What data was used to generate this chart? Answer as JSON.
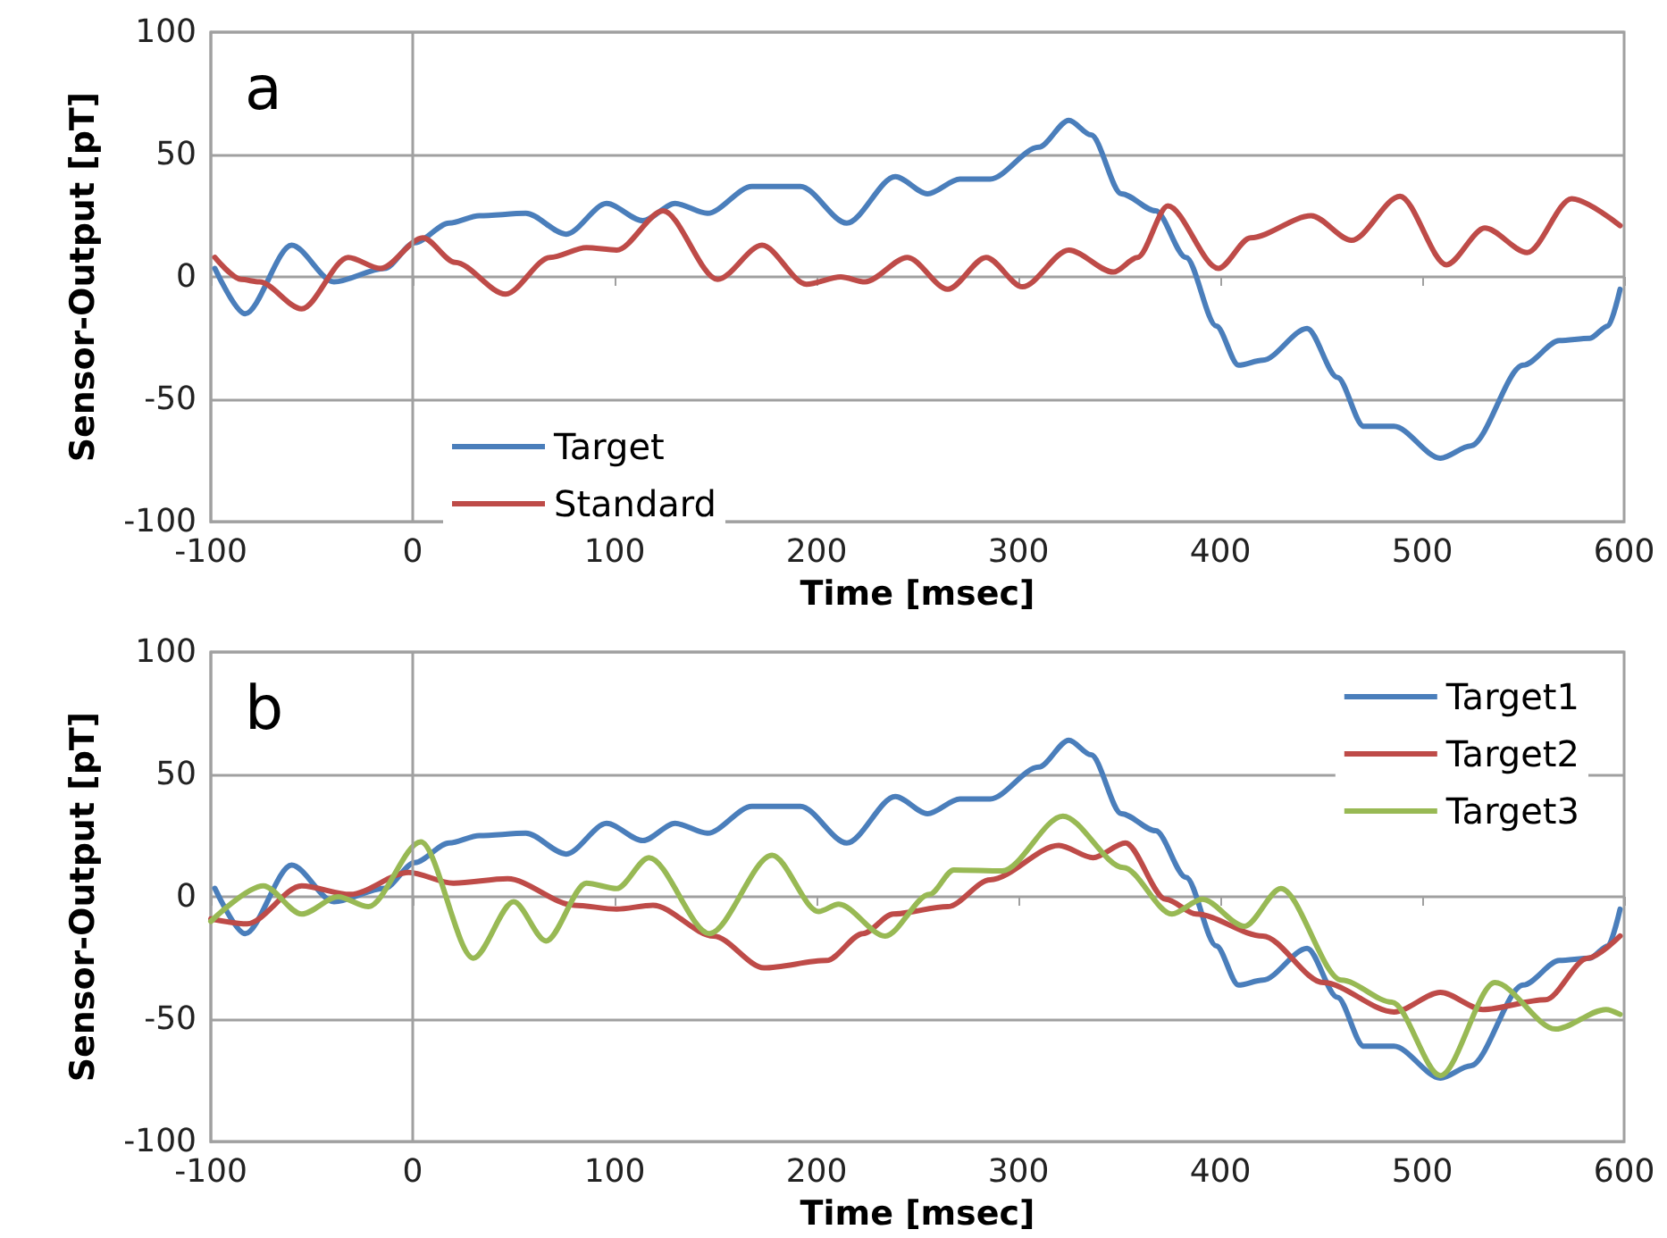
{
  "chart_data": [
    {
      "type": "line",
      "title": "a",
      "xlabel": "Time [msec]",
      "ylabel": "Sensor-Output [pT]",
      "xlim": [
        -100,
        600
      ],
      "xticks": [
        -100,
        0,
        100,
        200,
        300,
        400,
        500,
        600
      ],
      "ylim": [
        -100,
        100
      ],
      "yticks": [
        -100,
        -50,
        0,
        50,
        100
      ],
      "grid": "y",
      "legend": "bottom left",
      "marker": "none",
      "line_style": "solid",
      "ref_lines": [
        {
          "axis": "x",
          "value": 0
        }
      ],
      "series": [
        {
          "name": "Target",
          "color": "#4a7ebb",
          "x": [
            -98,
            -83,
            -60,
            -39,
            -14,
            1,
            18,
            33,
            56,
            76,
            96,
            114,
            130,
            146,
            168,
            192,
            215,
            239,
            255,
            271,
            286,
            310,
            325,
            336,
            351,
            368,
            383,
            398,
            409,
            421,
            443,
            458,
            471,
            486,
            509,
            524,
            550,
            568,
            583,
            592,
            598
          ],
          "values": [
            3.5,
            -15,
            13,
            -2,
            3.5,
            14,
            22,
            25,
            26,
            17.5,
            30,
            23,
            30,
            26,
            37,
            37,
            22,
            41,
            34,
            40,
            40,
            53,
            64,
            58,
            34,
            27,
            8,
            -20,
            -36,
            -34,
            -21,
            -41,
            -61,
            -61,
            -74,
            -69,
            -36,
            -26,
            -25,
            -20,
            -5
          ]
        },
        {
          "name": "Standard",
          "color": "#be4b48",
          "x": [
            -98,
            -85,
            -76,
            -55,
            -32,
            -16,
            5,
            21,
            46,
            68,
            86,
            101,
            124,
            151,
            173,
            195,
            212,
            224,
            245,
            265,
            284,
            302,
            325,
            347,
            359,
            374,
            399,
            415,
            445,
            465,
            489,
            512,
            531,
            552,
            574,
            598
          ],
          "values": [
            8,
            -1,
            -2,
            -13,
            8,
            3.5,
            16,
            6,
            -7,
            8,
            12,
            11,
            27,
            -1,
            13,
            -3,
            0,
            -2,
            8,
            -5,
            8,
            -4,
            11,
            2,
            8,
            29,
            3.5,
            16,
            25,
            15,
            33,
            5,
            20,
            10,
            32,
            21
          ]
        }
      ]
    },
    {
      "type": "line",
      "title": "b",
      "xlabel": "Time [msec]",
      "ylabel": "Sensor-Output [pT]",
      "xlim": [
        -100,
        600
      ],
      "xticks": [
        -100,
        0,
        100,
        200,
        300,
        400,
        500,
        600
      ],
      "ylim": [
        -100,
        100
      ],
      "yticks": [
        -100,
        -50,
        0,
        50,
        100
      ],
      "grid": "y",
      "legend": "top right",
      "marker": "none",
      "line_style": "solid",
      "ref_lines": [
        {
          "axis": "x",
          "value": 0
        }
      ],
      "series": [
        {
          "name": "Target1",
          "color": "#4a7ebb",
          "x": [
            -98,
            -83,
            -60,
            -39,
            -14,
            1,
            18,
            33,
            56,
            76,
            96,
            114,
            130,
            146,
            168,
            192,
            215,
            239,
            255,
            271,
            286,
            310,
            325,
            336,
            351,
            368,
            383,
            398,
            409,
            421,
            443,
            458,
            471,
            486,
            509,
            524,
            550,
            568,
            583,
            592,
            598
          ],
          "values": [
            3.5,
            -15,
            13,
            -2,
            3.5,
            14,
            22,
            25,
            26,
            17.5,
            30,
            23,
            30,
            26,
            37,
            37,
            22,
            41,
            34,
            40,
            40,
            53,
            64,
            58,
            34,
            27,
            8,
            -20,
            -36,
            -34,
            -21,
            -41,
            -61,
            -61,
            -74,
            -69,
            -36,
            -26,
            -25,
            -20,
            -5
          ]
        },
        {
          "name": "Target2",
          "color": "#be4b48",
          "x": [
            -100,
            -82,
            -55,
            -31,
            -2,
            20,
            47,
            80,
            101,
            119,
            149,
            174,
            205,
            223,
            238,
            265,
            286,
            320,
            337,
            353,
            373,
            388,
            421,
            451,
            486,
            509,
            530,
            561,
            582,
            598
          ],
          "values": [
            -9,
            -11,
            4.5,
            1,
            10,
            5.6,
            7.4,
            -3.4,
            -5,
            -3.4,
            -16,
            -29,
            -26,
            -15,
            -7,
            -4,
            7,
            21,
            16,
            22,
            -1,
            -7,
            -16,
            -35,
            -47,
            -39,
            -46,
            -42,
            -25,
            -16
          ]
        },
        {
          "name": "Target3",
          "color": "#98b954",
          "x": [
            -100,
            -74,
            -55,
            -37,
            -22,
            4,
            30,
            50,
            66,
            86,
            101,
            117,
            147,
            178,
            201,
            211,
            234,
            256,
            268,
            292,
            322,
            352,
            376,
            391,
            412,
            430,
            460,
            485,
            509,
            536,
            566,
            591,
            598
          ],
          "values": [
            -10,
            4.5,
            -7,
            0,
            -4,
            22.5,
            -25,
            -2,
            -18,
            5.6,
            3.4,
            16,
            -15,
            17,
            -6,
            -3,
            -16,
            1,
            11,
            10.6,
            33,
            12,
            -7,
            -1,
            -12,
            3.4,
            -34,
            -43,
            -73,
            -35,
            -54,
            -46,
            -48
          ]
        }
      ]
    }
  ]
}
